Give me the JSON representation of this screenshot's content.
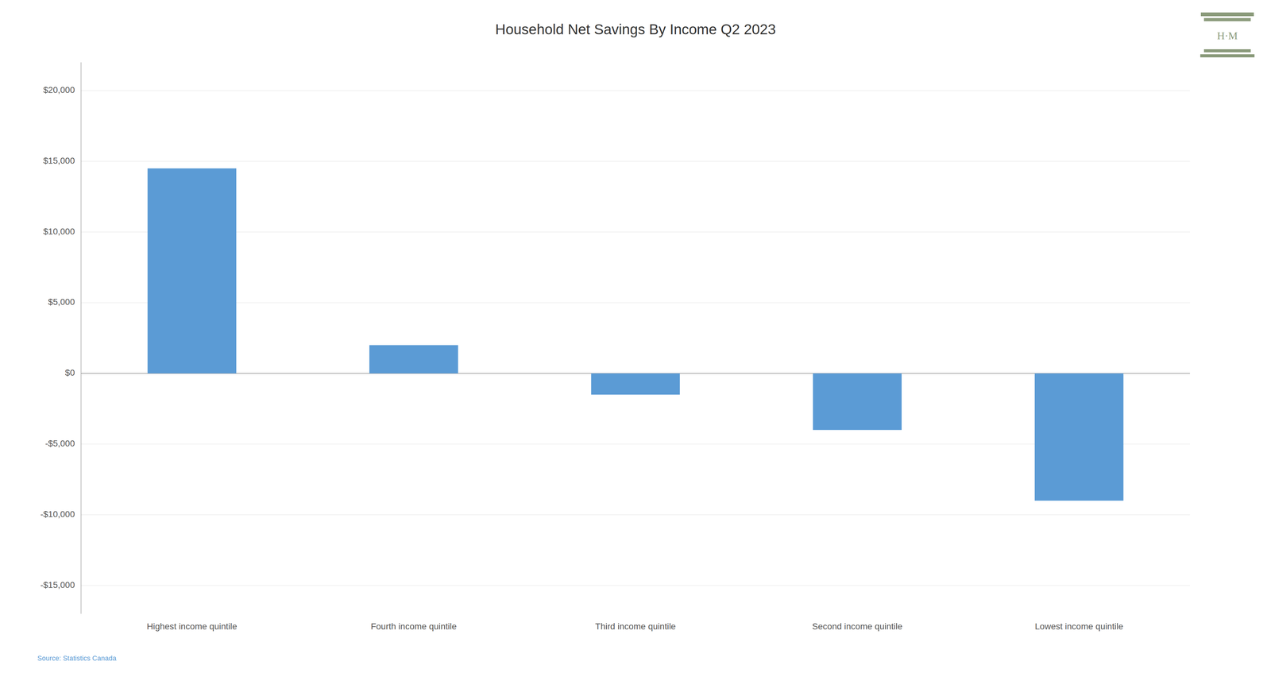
{
  "chart_data": {
    "type": "bar",
    "title": "Household Net Savings By Income Q2 2023",
    "categories": [
      "Highest income quintile",
      "Fourth income quintile",
      "Third income quintile",
      "Second income quintile",
      "Lowest income quintile"
    ],
    "values": [
      14500,
      2000,
      -1500,
      -4000,
      -9000
    ],
    "color": "#5b9bd5",
    "ylim": [
      -17000,
      22000
    ],
    "yticks": [
      {
        "value": -15000,
        "label": "-$15,000"
      },
      {
        "value": -10000,
        "label": "-$10,000"
      },
      {
        "value": -5000,
        "label": "-$5,000"
      },
      {
        "value": 0,
        "label": "$0"
      },
      {
        "value": 5000,
        "label": "$5,000"
      },
      {
        "value": 10000,
        "label": "$10,000"
      },
      {
        "value": 15000,
        "label": "$15,000"
      },
      {
        "value": 20000,
        "label": "$20,000"
      }
    ],
    "grid": true,
    "annotations": [
      "Source: Statistics Canada",
      "H·M"
    ]
  }
}
